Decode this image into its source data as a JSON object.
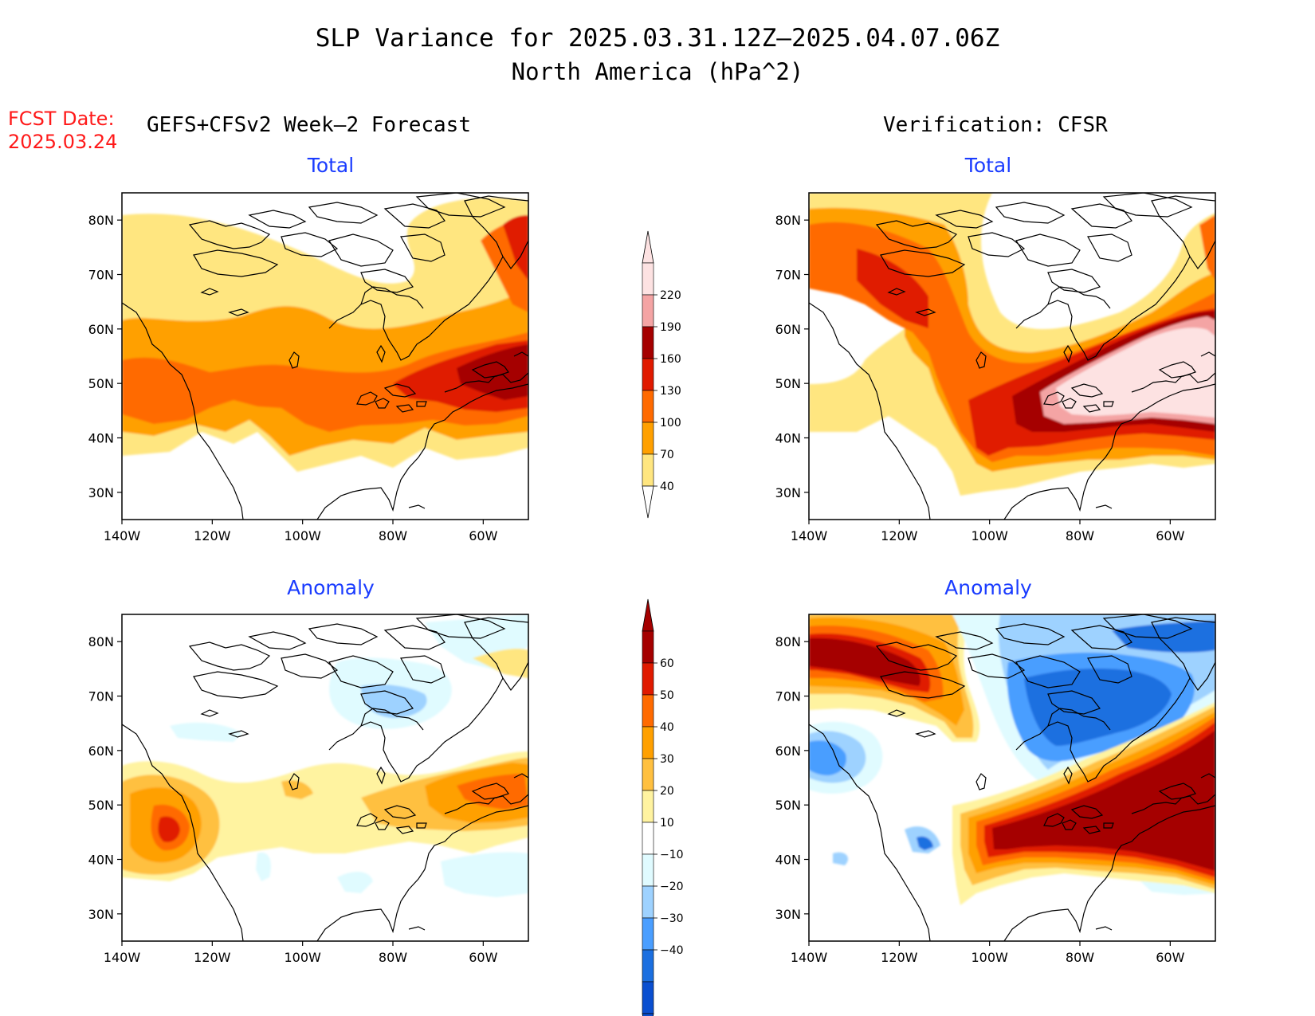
{
  "title": {
    "line1": "SLP Variance for 2025.03.31.12Z–2025.04.07.06Z",
    "line2": "North America (hPa^2)"
  },
  "forecast_date": {
    "label": "FCST Date:",
    "value": "2025.03.24"
  },
  "left_header": "GEFS+CFSv2 Week–2 Forecast",
  "right_header": "Verification: CFSR",
  "panels": {
    "fcst_total": "Total",
    "verif_total": "Total",
    "fcst_anom": "Anomaly",
    "verif_anom": "Anomaly"
  },
  "axes": {
    "lon_labels": [
      "140W",
      "120W",
      "100W",
      "80W",
      "60W"
    ],
    "lat_labels": [
      "80N",
      "70N",
      "60N",
      "50N",
      "40N",
      "30N"
    ]
  },
  "colorbar_total": {
    "levels": [
      "220",
      "190",
      "160",
      "130",
      "100",
      "70",
      "40"
    ],
    "colors": [
      "#fde2e2",
      "#f4a4a4",
      "#a50000",
      "#e01a00",
      "#ff6a00",
      "#ffa000",
      "#ffe680"
    ]
  },
  "colorbar_anom": {
    "levels": [
      "60",
      "50",
      "40",
      "30",
      "20",
      "10",
      "−10",
      "−20",
      "−30",
      "−40"
    ],
    "colors": [
      "#a50000",
      "#e01a00",
      "#ff6a00",
      "#ffa000",
      "#ffc040",
      "#fff3a0",
      "#ffffff",
      "#e0fbff",
      "#9ed2ff",
      "#4a9eff",
      "#1b6fe0",
      "#0a4fd0"
    ]
  },
  "colors": {
    "title": "#000000",
    "fcst_date": "#ff1a1a",
    "panel_title": "#1a3cff"
  }
}
